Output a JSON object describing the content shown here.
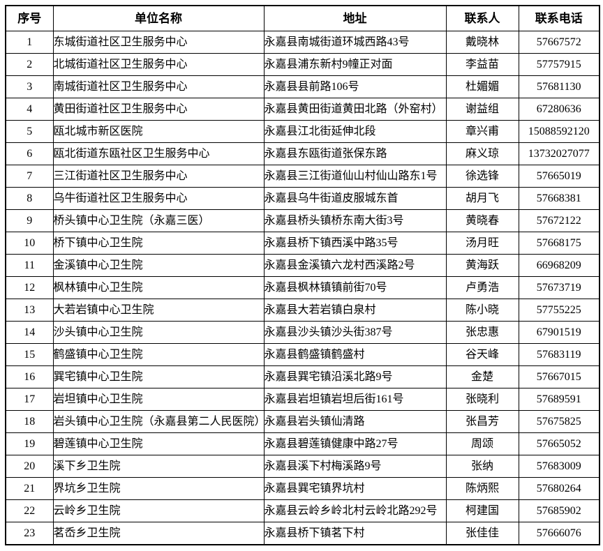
{
  "table": {
    "columns": [
      "序号",
      "单位名称",
      "地址",
      "联系人",
      "联系电话"
    ],
    "rows": [
      {
        "no": "1",
        "name": "东城街道社区卫生服务中心",
        "address": "永嘉县南城街道环城西路43号",
        "contact": "戴晓林",
        "phone": "57667572"
      },
      {
        "no": "2",
        "name": "北城街道社区卫生服务中心",
        "address": "永嘉县浦东新村9幢正对面",
        "contact": "李益苗",
        "phone": "57757915"
      },
      {
        "no": "3",
        "name": "南城街道社区卫生服务中心",
        "address": "永嘉县县前路106号",
        "contact": "杜媚媚",
        "phone": "57681130"
      },
      {
        "no": "4",
        "name": "黄田街道社区卫生服务中心",
        "address": "永嘉县黄田街道黄田北路（外窑村）",
        "contact": "谢益组",
        "phone": "67280636"
      },
      {
        "no": "5",
        "name": "瓯北城市新区医院",
        "address": "永嘉县江北街延伸北段",
        "contact": "章兴甫",
        "phone": "15088592120"
      },
      {
        "no": "6",
        "name": "瓯北街道东瓯社区卫生服务中心",
        "address": "永嘉县东瓯街道张保东路",
        "contact": "麻义琼",
        "phone": "13732027077"
      },
      {
        "no": "7",
        "name": "三江街道社区卫生服务中心",
        "address": "永嘉县三江街道仙山村仙山路东1号",
        "contact": "徐选锋",
        "phone": "57665019"
      },
      {
        "no": "8",
        "name": "乌牛街道社区卫生服务中心",
        "address": "永嘉县乌牛街道皮服城东首",
        "contact": "胡月飞",
        "phone": "57668381"
      },
      {
        "no": "9",
        "name": "桥头镇中心卫生院（永嘉三医）",
        "address": "永嘉县桥头镇桥东南大街3号",
        "contact": "黄晓春",
        "phone": "57672122"
      },
      {
        "no": "10",
        "name": "桥下镇中心卫生院",
        "address": "永嘉县桥下镇西溪中路35号",
        "contact": "汤月旺",
        "phone": "57668175"
      },
      {
        "no": "11",
        "name": "金溪镇中心卫生院",
        "address": "永嘉县金溪镇六龙村西溪路2号",
        "contact": "黄海跃",
        "phone": "66968209"
      },
      {
        "no": "12",
        "name": "枫林镇中心卫生院",
        "address": "永嘉县枫林镇镇前街70号",
        "contact": "卢勇浩",
        "phone": "57673719"
      },
      {
        "no": "13",
        "name": "大若岩镇中心卫生院",
        "address": "永嘉县大若岩镇白泉村",
        "contact": "陈小晓",
        "phone": "57755225"
      },
      {
        "no": "14",
        "name": "沙头镇中心卫生院",
        "address": "永嘉县沙头镇沙头街387号",
        "contact": "张忠惠",
        "phone": "67901519"
      },
      {
        "no": "15",
        "name": "鹤盛镇中心卫生院",
        "address": "永嘉县鹤盛镇鹤盛村",
        "contact": "谷天峰",
        "phone": "57683119"
      },
      {
        "no": "16",
        "name": "巽宅镇中心卫生院",
        "address": "永嘉县巽宅镇沿溪北路9号",
        "contact": "金楚",
        "phone": "57667015"
      },
      {
        "no": "17",
        "name": "岩坦镇中心卫生院",
        "address": "永嘉县岩坦镇岩坦后街161号",
        "contact": "张晓利",
        "phone": "57689591"
      },
      {
        "no": "18",
        "name": "岩头镇中心卫生院（永嘉县第二人民医院）",
        "address": "永嘉县岩头镇仙清路",
        "contact": "张昌芳",
        "phone": "57675825"
      },
      {
        "no": "19",
        "name": "碧莲镇中心卫生院",
        "address": "永嘉县碧莲镇健康中路27号",
        "contact": "周颂",
        "phone": "57665052"
      },
      {
        "no": "20",
        "name": "溪下乡卫生院",
        "address": "永嘉县溪下村梅溪路9号",
        "contact": "张纳",
        "phone": "57683009"
      },
      {
        "no": "21",
        "name": "界坑乡卫生院",
        "address": "永嘉县巽宅镇界坑村",
        "contact": "陈炳熙",
        "phone": "57680264"
      },
      {
        "no": "22",
        "name": "云岭乡卫生院",
        "address": "永嘉县云岭乡岭北村云岭北路292号",
        "contact": "柯建国",
        "phone": "57685902"
      },
      {
        "no": "23",
        "name": "茗岙乡卫生院",
        "address": "永嘉县桥下镇茗下村",
        "contact": "张佳佳",
        "phone": "57666076"
      }
    ]
  }
}
